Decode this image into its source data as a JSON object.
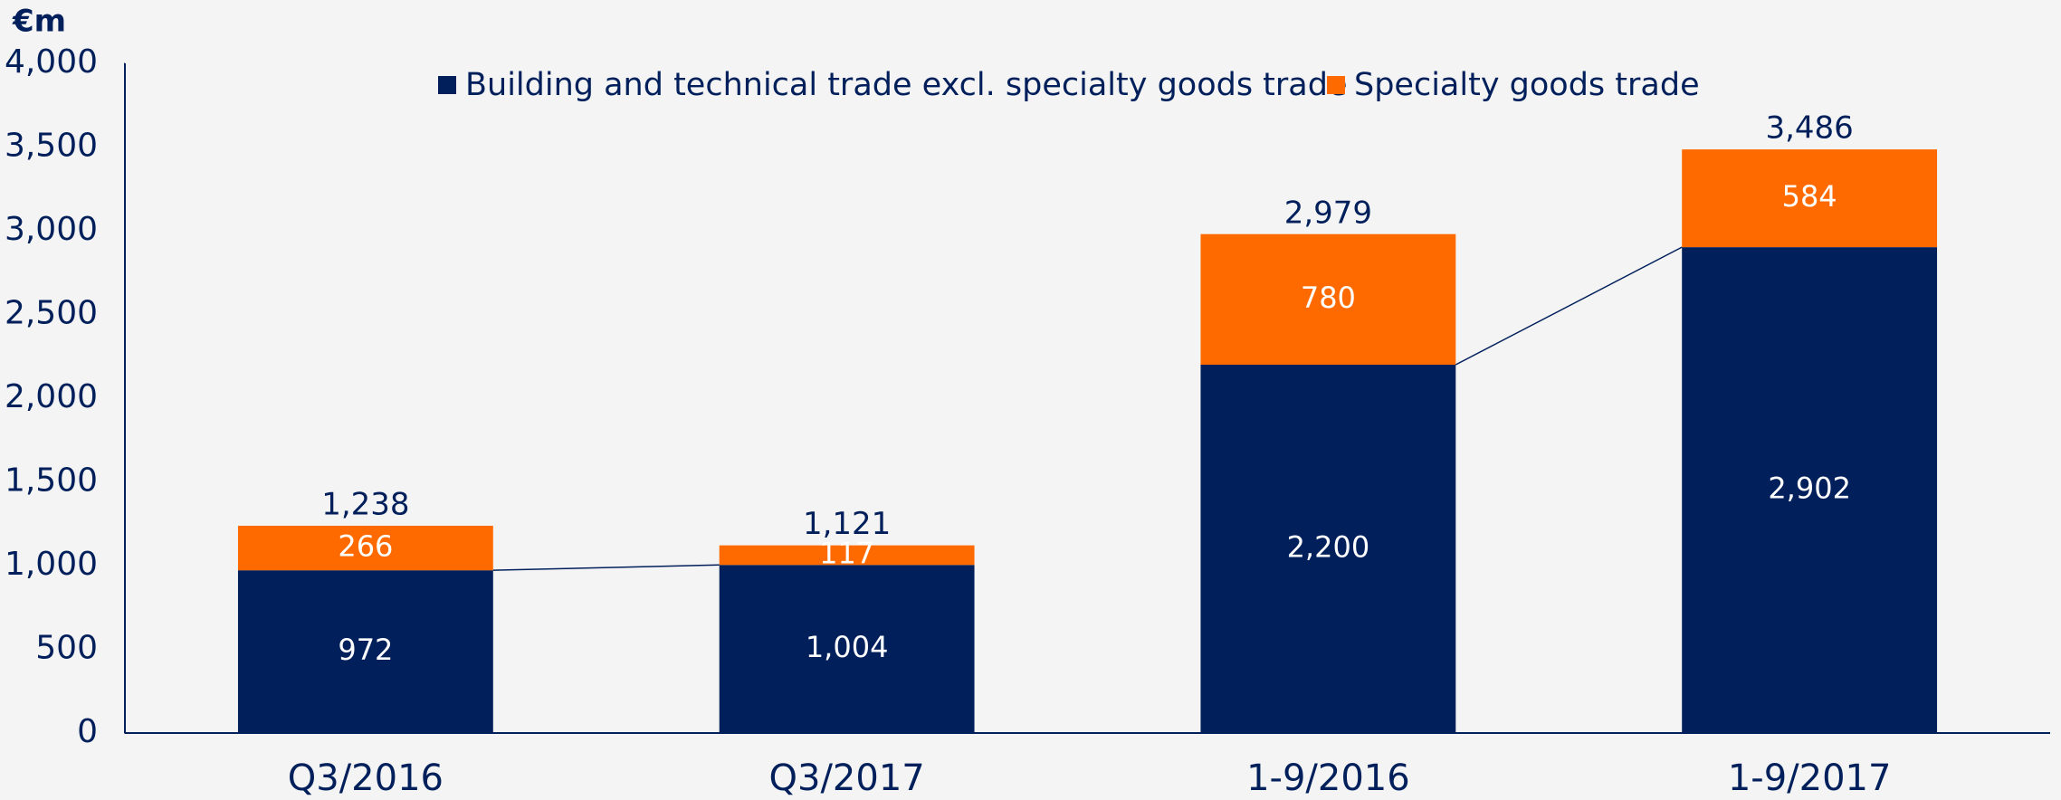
{
  "chart_data": {
    "type": "stacked_bar",
    "y_label": "€m",
    "categories": [
      "Q3/2016",
      "Q3/2017",
      "1-9/2016",
      "1-9/2017"
    ],
    "series": [
      {
        "name": "Building and technical trade excl. specialty goods trade",
        "color": "#001f5b",
        "values": [
          972,
          1004,
          2200,
          2902
        ],
        "value_labels": [
          "972",
          "1,004",
          "2,200",
          "2,902"
        ]
      },
      {
        "name": "Specialty goods trade",
        "color": "#ff6a00",
        "values": [
          266,
          117,
          780,
          584
        ],
        "value_labels": [
          "266",
          "117",
          "780",
          "584"
        ]
      }
    ],
    "totals": [
      1238,
      1121,
      2979,
      3486
    ],
    "total_labels": [
      "1,238",
      "1,121",
      "2,979",
      "3,486"
    ],
    "ylim": [
      0,
      4000
    ],
    "yticks": [
      0,
      500,
      {
        "value": 1000,
        "label": "1,000"
      },
      {
        "value": 1500,
        "label": "1,500"
      },
      {
        "value": 2000,
        "label": "2,000"
      },
      {
        "value": 2500,
        "label": "2,500"
      },
      {
        "value": 3000,
        "label": "3,000"
      },
      {
        "value": 3500,
        "label": "3,500"
      },
      {
        "value": 4000,
        "label": "4,000"
      }
    ],
    "grid": false
  }
}
